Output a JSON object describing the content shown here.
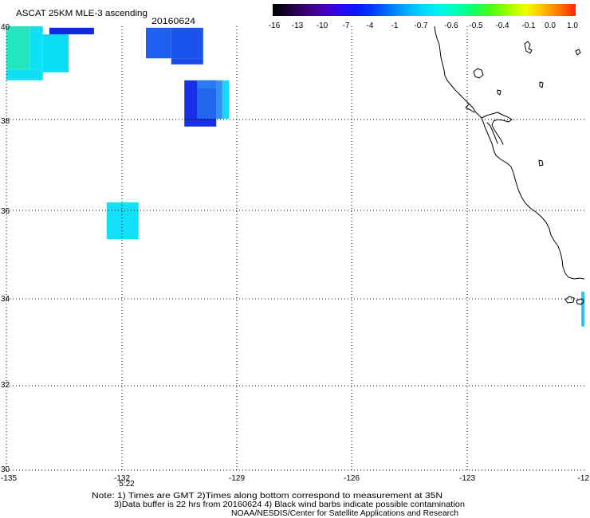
{
  "title": "ASCAT 25KM MLE-3 ascending",
  "date": "20160624",
  "colorbar": {
    "labels": [
      "-16",
      "-13",
      "-10",
      "-7",
      "-4",
      "-1",
      "-0.7",
      "-0.6",
      "-0.5",
      "-0.4",
      "-0.1",
      "0.0",
      "1.0"
    ],
    "gradient": [
      "#000000",
      "#1e003c",
      "#3c0078",
      "#4800b8",
      "#2a08f0",
      "#0818ff",
      "#0040ff",
      "#0078ff",
      "#00b0ff",
      "#00dcff",
      "#00f4e8",
      "#00ffb0",
      "#10ff60",
      "#50ff10",
      "#a0ff00",
      "#f0ff00",
      "#ffc000",
      "#ff7800",
      "#ff2000"
    ]
  },
  "axes": {
    "lat_labels": [
      "40",
      "38",
      "36",
      "34",
      "32",
      "30"
    ],
    "lon_labels": [
      "-135",
      "-132",
      "-129",
      "-126",
      "-123",
      "-12"
    ]
  },
  "pass_time": {
    "label": "5:22",
    "color": "#c81010"
  },
  "cells": [
    {
      "lon": [
        -135.0,
        -134.38
      ],
      "lat": [
        39.07,
        40.0
      ],
      "color": "#22e6c0"
    },
    {
      "lon": [
        -134.38,
        -134.05
      ],
      "lat": [
        39.07,
        40.0
      ],
      "color": "#0ce2f4"
    },
    {
      "lon": [
        -135.0,
        -134.05
      ],
      "lat": [
        38.85,
        39.07
      ],
      "color": "#12def4"
    },
    {
      "lon": [
        -134.05,
        -133.38
      ],
      "lat": [
        39.02,
        39.83
      ],
      "color": "#0adcf6"
    },
    {
      "lon": [
        -133.88,
        -132.72
      ],
      "lat": [
        39.83,
        39.97
      ],
      "color": "#1228e8"
    },
    {
      "lon": [
        -131.37,
        -130.71
      ],
      "lat": [
        39.32,
        39.97
      ],
      "color": "#1f60f0"
    },
    {
      "lon": [
        -130.71,
        -129.88
      ],
      "lat": [
        39.32,
        39.97
      ],
      "color": "#1b54ec"
    },
    {
      "lon": [
        -130.71,
        -129.88
      ],
      "lat": [
        39.19,
        39.32
      ],
      "color": "#1a4ae8"
    },
    {
      "lon": [
        -130.37,
        -129.54
      ],
      "lat": [
        37.85,
        38.85
      ],
      "color": "#1530e6"
    },
    {
      "lon": [
        -130.04,
        -129.54
      ],
      "lat": [
        38.67,
        38.85
      ],
      "color": "#2a7af0"
    },
    {
      "lon": [
        -130.04,
        -129.54
      ],
      "lat": [
        38.02,
        38.67
      ],
      "color": "#2266ee"
    },
    {
      "lon": [
        -129.54,
        -129.38
      ],
      "lat": [
        38.02,
        38.85
      ],
      "color": "#3092f2"
    },
    {
      "lon": [
        -129.38,
        -129.21
      ],
      "lat": [
        38.02,
        38.85
      ],
      "color": "#14dcf6"
    },
    {
      "lon": [
        -132.39,
        -131.56
      ],
      "lat": [
        35.36,
        36.18
      ],
      "color": "#12e0f8"
    },
    {
      "lon": [
        -120.04,
        -119.96
      ],
      "lat": [
        33.37,
        34.17
      ],
      "color": "#22c8f2"
    }
  ],
  "notes": [
    "Note: 1) Times are GMT 2)Times along bottom correspond to measurement at 35N",
    "3)Data buffer is 22 hrs from 20160624 4) Black wind barbs indicate possible contamination",
    "NOAA/NESDIS/Center for Satellite Applications and Research"
  ]
}
